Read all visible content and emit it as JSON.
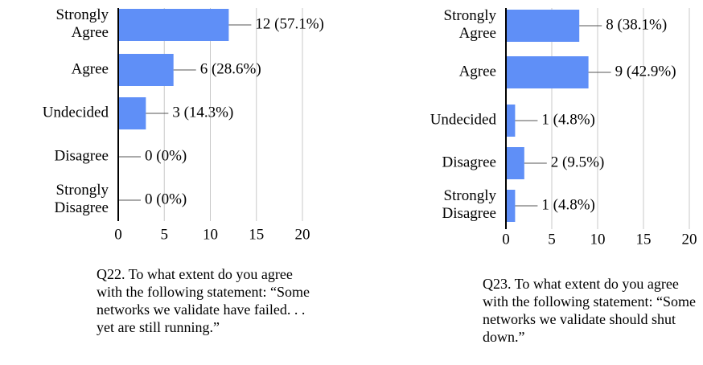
{
  "chart_data": [
    {
      "type": "barh",
      "caption": "Q22. To what extent do you agree with the following statement: “Some networks we validate have failed. . . yet are still running.”",
      "categories": [
        "Strongly Agree",
        "Agree",
        "Undecided",
        "Disagree",
        "Strongly Disagree"
      ],
      "values": [
        12,
        6,
        3,
        0,
        0
      ],
      "value_labels": [
        "12 (57.1%)",
        "6 (28.6%)",
        "3 (14.3%)",
        "0 (0%)",
        "0 (0%)"
      ],
      "color": "#5f8ff7",
      "xlim": [
        0,
        20
      ],
      "xticks": [
        0,
        5,
        10,
        15,
        20
      ],
      "grid": true
    },
    {
      "type": "barh",
      "caption": "Q23. To what extent do you agree with the following statement: “Some networks we validate should shut down.”",
      "categories": [
        "Strongly Agree",
        "Agree",
        "Undecided",
        "Disagree",
        "Strongly Disagree"
      ],
      "values": [
        8,
        9,
        1,
        2,
        1
      ],
      "value_labels": [
        "8 (38.1%)",
        "9 (42.9%)",
        "1 (4.8%)",
        "2 (9.5%)",
        "1 (4.8%)"
      ],
      "color": "#5f8ff7",
      "xlim": [
        0,
        20
      ],
      "xticks": [
        0,
        5,
        10,
        15,
        20
      ],
      "grid": true
    }
  ]
}
